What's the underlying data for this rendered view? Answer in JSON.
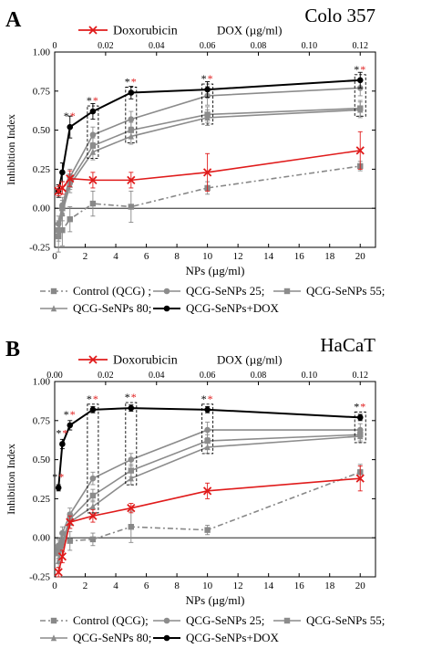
{
  "chart_data": [
    {
      "type": "line",
      "panel_letter": "A",
      "cell_line": "Colo 357",
      "legend_top": "Doxorubicin",
      "xlabel": "NPs (µg/ml)",
      "ylabel": "Inhibition Index",
      "top_axis_label": "DOX (µg/ml)",
      "xlim": [
        0,
        21
      ],
      "ylim": [
        -0.25,
        1.0
      ],
      "x_ticks": [
        "0",
        "2",
        "4",
        "6",
        "8",
        "10",
        "12",
        "14",
        "16",
        "18",
        "20"
      ],
      "y_ticks": [
        "-0.25",
        "0.00",
        "0.25",
        "0.50",
        "0.75",
        "1.00"
      ],
      "top_ticks": [
        "0",
        "0.02",
        "0.04",
        "0.06",
        "0.08",
        "0.10",
        "0.12"
      ],
      "top_max": 0.12,
      "grid": false,
      "x": [
        0.25,
        0.5,
        1,
        2.5,
        5,
        10,
        20
      ],
      "series": [
        {
          "name": "Control (QCG)",
          "color": "#888888",
          "marker": "square",
          "dash": "dashdot",
          "values": [
            -0.18,
            -0.14,
            -0.07,
            0.03,
            0.01,
            0.13,
            0.27
          ],
          "errors": [
            0.1,
            0.1,
            0.08,
            0.08,
            0.1,
            0.04,
            0.03
          ]
        },
        {
          "name": "QCG-SeNPs 25",
          "color": "#8c8c8c",
          "marker": "circle",
          "dash": "solid",
          "values": [
            -0.1,
            0.02,
            0.2,
            0.47,
            0.57,
            0.72,
            0.77
          ],
          "errors": [
            0.05,
            0.05,
            0.05,
            0.05,
            0.05,
            0.06,
            0.05
          ]
        },
        {
          "name": "QCG-SeNPs 55",
          "color": "#8c8c8c",
          "marker": "square",
          "dash": "solid",
          "values": [
            -0.14,
            0.0,
            0.17,
            0.4,
            0.5,
            0.6,
            0.64
          ],
          "errors": [
            0.05,
            0.05,
            0.05,
            0.05,
            0.05,
            0.05,
            0.05
          ]
        },
        {
          "name": "QCG-SeNPs 80",
          "color": "#8c8c8c",
          "marker": "triangle",
          "dash": "solid",
          "values": [
            -0.16,
            -0.03,
            0.15,
            0.36,
            0.46,
            0.58,
            0.63
          ],
          "errors": [
            0.05,
            0.05,
            0.05,
            0.05,
            0.05,
            0.05,
            0.05
          ]
        },
        {
          "name": "QCG-SeNPs+DOX",
          "color": "#000000",
          "marker": "circle",
          "dash": "solid",
          "values": [
            0.11,
            0.23,
            0.52,
            0.62,
            0.74,
            0.76,
            0.82
          ],
          "errors": [
            0.04,
            0.06,
            0.07,
            0.05,
            0.04,
            0.05,
            0.05
          ]
        },
        {
          "name": "Doxorubicin",
          "color": "#e01b1b",
          "marker": "x",
          "dash": "solid",
          "values": [
            0.11,
            0.13,
            0.19,
            0.18,
            0.18,
            0.23,
            0.37
          ],
          "errors": [
            0.03,
            0.04,
            0.05,
            0.05,
            0.05,
            0.12,
            0.12
          ]
        }
      ],
      "significance": [
        "*",
        "*"
      ],
      "boxed_indices": [
        3,
        4,
        5,
        6
      ],
      "starred_indices": [
        2,
        3,
        4,
        5,
        6
      ],
      "legend_bottom": [
        [
          "Control (QCG) ;",
          "QCG-SeNPs 25;",
          "QCG-SeNPs 55;"
        ],
        [
          "QCG-SeNPs 80;",
          "QCG-SeNPs+DOX"
        ]
      ]
    },
    {
      "type": "line",
      "panel_letter": "B",
      "cell_line": "HaCaT",
      "legend_top": "Doxorubicin",
      "xlabel": "NPs (µg/ml)",
      "ylabel": "Inhibition Index",
      "top_axis_label": "DOX (µg/ml)",
      "xlim": [
        0,
        21
      ],
      "ylim": [
        -0.25,
        1.0
      ],
      "x_ticks": [
        "0",
        "2",
        "4",
        "6",
        "8",
        "10",
        "12",
        "14",
        "16",
        "18",
        "20"
      ],
      "y_ticks": [
        "-0.25",
        "0.00",
        "0.25",
        "0.50",
        "0.75",
        "1.00"
      ],
      "top_ticks": [
        "0.00",
        "0.02",
        "0.04",
        "0.06",
        "0.08",
        "0.10",
        "0.12"
      ],
      "top_max": 0.12,
      "grid": false,
      "x": [
        0.25,
        0.5,
        1,
        2.5,
        5,
        10,
        20
      ],
      "series": [
        {
          "name": "Control (QCG)",
          "color": "#888888",
          "marker": "square",
          "dash": "dashdot",
          "values": [
            -0.07,
            -0.03,
            -0.02,
            -0.01,
            0.07,
            0.05,
            0.42
          ],
          "errors": [
            0.06,
            0.06,
            0.06,
            0.04,
            0.1,
            0.03,
            0.05
          ]
        },
        {
          "name": "QCG-SeNPs 25",
          "color": "#8c8c8c",
          "marker": "circle",
          "dash": "solid",
          "values": [
            -0.05,
            0.03,
            0.15,
            0.38,
            0.5,
            0.69,
            0.69
          ],
          "errors": [
            0.04,
            0.04,
            0.04,
            0.04,
            0.04,
            0.05,
            0.04
          ]
        },
        {
          "name": "QCG-SeNPs 55",
          "color": "#8c8c8c",
          "marker": "square",
          "dash": "solid",
          "values": [
            -0.1,
            -0.02,
            0.12,
            0.27,
            0.43,
            0.62,
            0.66
          ],
          "errors": [
            0.04,
            0.04,
            0.04,
            0.04,
            0.04,
            0.04,
            0.04
          ]
        },
        {
          "name": "QCG-SeNPs 80",
          "color": "#8c8c8c",
          "marker": "triangle",
          "dash": "solid",
          "values": [
            -0.15,
            -0.05,
            0.1,
            0.2,
            0.38,
            0.58,
            0.65
          ],
          "errors": [
            0.04,
            0.04,
            0.04,
            0.04,
            0.04,
            0.04,
            0.04
          ]
        },
        {
          "name": "QCG-SeNPs+DOX",
          "color": "#000000",
          "marker": "circle",
          "dash": "solid",
          "values": [
            0.32,
            0.6,
            0.72,
            0.82,
            0.83,
            0.82,
            0.77
          ],
          "errors": [
            0.02,
            0.03,
            0.03,
            0.02,
            0.02,
            0.02,
            0.02
          ]
        },
        {
          "name": "Doxorubicin",
          "color": "#e01b1b",
          "marker": "x",
          "dash": "solid",
          "values": [
            -0.22,
            -0.12,
            0.1,
            0.14,
            0.19,
            0.3,
            0.38
          ],
          "errors": [
            0.03,
            0.04,
            0.04,
            0.04,
            0.03,
            0.05,
            0.08
          ]
        }
      ],
      "significance": [
        "*",
        "*"
      ],
      "boxed_indices": [
        3,
        4,
        5,
        6
      ],
      "starred_indices": [
        0,
        1,
        2,
        3,
        4,
        5,
        6
      ],
      "legend_bottom": [
        [
          "Control (QCG);",
          "QCG-SeNPs 25;",
          "QCG-SeNPs 55;"
        ],
        [
          "QCG-SeNPs 80;",
          "QCG-SeNPs+DOX"
        ]
      ]
    }
  ]
}
